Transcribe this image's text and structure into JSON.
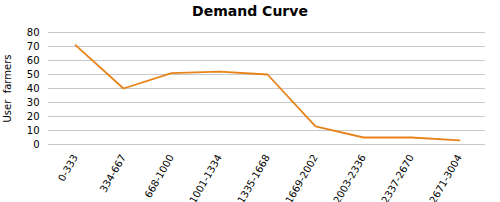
{
  "chart_data": {
    "type": "line",
    "title": "Demand Curve",
    "ylabel": "User  farmers",
    "categories": [
      "0-333",
      "334-667",
      "668-1000",
      "1001-1334",
      "1335-1668",
      "1669-2002",
      "2003-2336",
      "2337-2670",
      "2671-3004"
    ],
    "values": [
      71,
      40,
      51,
      52,
      50,
      13,
      5,
      5,
      3
    ],
    "color": "#E8821A",
    "ylim": [
      0,
      80
    ],
    "yticks": [
      0,
      10,
      20,
      30,
      40,
      50,
      60,
      70,
      80
    ],
    "grid": true
  }
}
